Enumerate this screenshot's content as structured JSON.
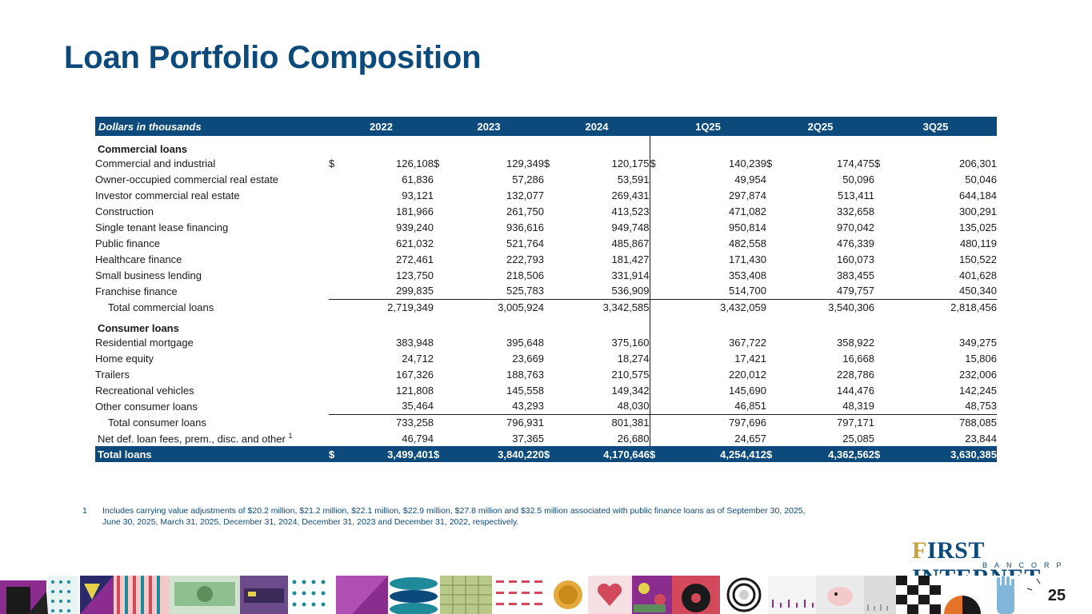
{
  "title": "Loan Portfolio Composition",
  "table": {
    "header": [
      "Dollars in thousands",
      "2022",
      "2023",
      "2024",
      "1Q25",
      "2Q25",
      "3Q25"
    ],
    "sections": [
      {
        "label": "Commercial loans",
        "rows": [
          {
            "label": "Commercial and industrial",
            "dollar": true,
            "values": [
              "126,108",
              "129,349",
              "120,175",
              "140,239",
              "174,475",
              "206,301"
            ]
          },
          {
            "label": "Owner-occupied commercial real estate",
            "values": [
              "61,836",
              "57,286",
              "53,591",
              "49,954",
              "50,096",
              "50,046"
            ]
          },
          {
            "label": "Investor commercial real estate",
            "values": [
              "93,121",
              "132,077",
              "269,431",
              "297,874",
              "513,411",
              "644,184"
            ]
          },
          {
            "label": "Construction",
            "values": [
              "181,966",
              "261,750",
              "413,523",
              "471,082",
              "332,658",
              "300,291"
            ]
          },
          {
            "label": "Single tenant lease financing",
            "values": [
              "939,240",
              "936,616",
              "949,748",
              "950,814",
              "970,042",
              "135,025"
            ]
          },
          {
            "label": "Public finance",
            "values": [
              "621,032",
              "521,764",
              "485,867",
              "482,558",
              "476,339",
              "480,119"
            ]
          },
          {
            "label": "Healthcare finance",
            "values": [
              "272,461",
              "222,793",
              "181,427",
              "171,430",
              "160,073",
              "150,522"
            ]
          },
          {
            "label": "Small business lending",
            "values": [
              "123,750",
              "218,506",
              "331,914",
              "353,408",
              "383,455",
              "401,628"
            ]
          },
          {
            "label": "Franchise finance",
            "values": [
              "299,835",
              "525,783",
              "536,909",
              "514,700",
              "479,757",
              "450,340"
            ]
          }
        ],
        "total": {
          "label": "Total commercial loans",
          "values": [
            "2,719,349",
            "3,005,924",
            "3,342,585",
            "3,432,059",
            "3,540,306",
            "2,818,456"
          ]
        }
      },
      {
        "label": "Consumer loans",
        "rows": [
          {
            "label": "Residential mortgage",
            "values": [
              "383,948",
              "395,648",
              "375,160",
              "367,722",
              "358,922",
              "349,275"
            ]
          },
          {
            "label": "Home equity",
            "values": [
              "24,712",
              "23,669",
              "18,274",
              "17,421",
              "16,668",
              "15,806"
            ]
          },
          {
            "label": "Trailers",
            "values": [
              "167,326",
              "188,763",
              "210,575",
              "220,012",
              "228,786",
              "232,006"
            ]
          },
          {
            "label": "Recreational vehicles",
            "values": [
              "121,808",
              "145,558",
              "149,342",
              "145,690",
              "144,476",
              "142,245"
            ]
          },
          {
            "label": "Other consumer loans",
            "values": [
              "35,464",
              "43,293",
              "48,030",
              "46,851",
              "48,319",
              "48,753"
            ]
          }
        ],
        "total": {
          "label": "Total consumer loans",
          "values": [
            "733,258",
            "796,931",
            "801,381",
            "797,696",
            "797,171",
            "788,085"
          ]
        }
      }
    ],
    "net": {
      "label": "Net def. loan fees, prem., disc. and other",
      "sup": "1",
      "values": [
        "46,794",
        "37,365",
        "26,680",
        "24,657",
        "25,085",
        "23,844"
      ]
    },
    "grand_total": {
      "label": "Total loans",
      "values": [
        "3,499,401",
        "3,840,220",
        "4,170,646",
        "4,254,412",
        "4,362,562",
        "3,630,385"
      ]
    },
    "currency_symbol": "$"
  },
  "footnote": {
    "mark": "1",
    "text": "Includes carrying value adjustments of $20.2 million, $21.2 million, $22.1 million, $22.9 million, $27.8 million and $32.5 million associated with public finance loans as of September 30, 2025, June 30, 2025, March 31, 2025, December 31, 2024, December 31, 2023 and December 31, 2022, respectively."
  },
  "logo": {
    "initial": "F",
    "main": "IRST INTERNET",
    "sub": "BANCORP"
  },
  "page_number": "25",
  "colors": {
    "brand_blue": "#0b4a7a",
    "accent_gold": "#c9a23a",
    "banner_purple": "#8a2d8e",
    "banner_teal": "#1f8a9a"
  }
}
